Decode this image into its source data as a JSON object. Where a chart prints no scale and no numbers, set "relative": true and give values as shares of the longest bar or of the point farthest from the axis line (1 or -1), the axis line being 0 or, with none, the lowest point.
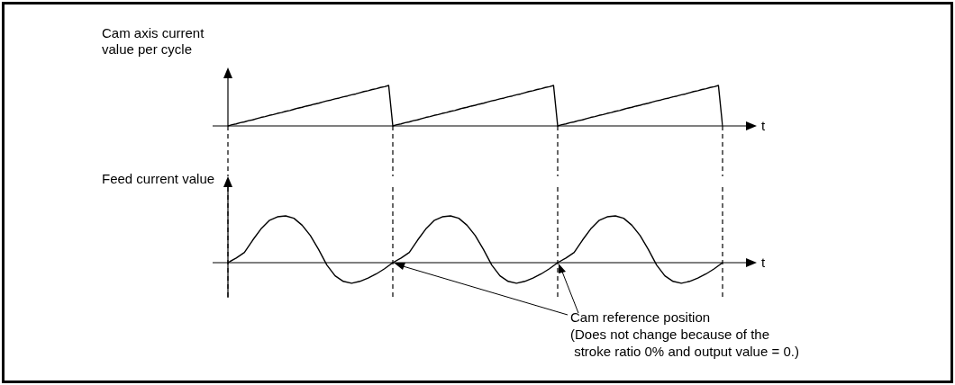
{
  "chart_data": [
    {
      "type": "line",
      "ylabel": "Cam axis current value per cycle",
      "xlabel": "t",
      "relative": true,
      "tick_labels": false,
      "grid": "x",
      "categories": [
        null,
        null,
        null,
        null,
        null,
        null,
        null,
        null,
        null,
        null,
        null,
        null,
        null,
        null,
        null,
        null,
        null,
        null,
        null,
        null,
        null,
        null,
        null,
        null,
        null,
        null,
        null,
        null,
        null,
        null,
        null,
        null,
        null,
        null,
        null,
        null,
        null,
        null,
        null,
        null,
        null,
        null,
        null,
        null,
        null,
        null,
        null,
        null,
        null,
        null,
        null,
        null,
        null,
        null,
        null,
        null,
        null,
        null,
        null,
        null,
        null,
        null,
        null,
        null,
        null,
        null,
        null,
        null,
        null,
        null,
        null,
        null,
        null,
        null,
        null,
        null,
        null,
        null,
        null,
        null,
        null,
        null,
        null,
        null,
        null,
        null,
        null,
        null,
        null,
        null,
        null,
        null,
        null,
        null,
        null,
        null,
        null,
        null,
        null,
        null,
        null,
        null,
        null,
        null,
        null,
        null,
        null,
        null,
        null,
        null,
        null,
        null,
        null,
        null,
        null,
        null,
        null,
        null,
        null,
        null,
        null
      ],
      "series": [
        {
          "color": "#000000",
          "values": [
            0,
            0.03,
            0.05,
            0.08,
            0.1,
            0.13,
            0.15,
            0.18,
            0.21,
            0.23,
            0.26,
            0.28,
            0.31,
            0.33,
            0.36,
            0.38,
            0.41,
            0.44,
            0.46,
            0.49,
            0.51,
            0.54,
            0.56,
            0.59,
            0.62,
            0.64,
            0.67,
            0.69,
            0.72,
            0.74,
            0.77,
            0.79,
            0.82,
            0.85,
            0.87,
            0.9,
            0.92,
            0.95,
            0.97,
            1,
            0,
            0.03,
            0.05,
            0.08,
            0.1,
            0.13,
            0.15,
            0.18,
            0.21,
            0.23,
            0.26,
            0.28,
            0.31,
            0.33,
            0.36,
            0.38,
            0.41,
            0.44,
            0.46,
            0.49,
            0.51,
            0.54,
            0.56,
            0.59,
            0.62,
            0.64,
            0.67,
            0.69,
            0.72,
            0.74,
            0.77,
            0.79,
            0.82,
            0.85,
            0.87,
            0.9,
            0.92,
            0.95,
            0.97,
            1,
            0,
            0.03,
            0.05,
            0.08,
            0.1,
            0.13,
            0.15,
            0.18,
            0.21,
            0.23,
            0.26,
            0.28,
            0.31,
            0.33,
            0.36,
            0.38,
            0.41,
            0.44,
            0.46,
            0.49,
            0.51,
            0.54,
            0.56,
            0.59,
            0.62,
            0.64,
            0.67,
            0.69,
            0.72,
            0.74,
            0.77,
            0.79,
            0.82,
            0.85,
            0.87,
            0.9,
            0.92,
            0.95,
            0.97,
            1,
            0
          ]
        }
      ]
    },
    {
      "type": "line",
      "ylabel": "Feed current value",
      "xlabel": "t",
      "relative": true,
      "tick_labels": false,
      "grid": "x",
      "categories": [
        null,
        null,
        null,
        null,
        null,
        null,
        null,
        null,
        null,
        null,
        null,
        null,
        null,
        null,
        null,
        null,
        null,
        null,
        null,
        null,
        null,
        null,
        null,
        null,
        null,
        null,
        null,
        null,
        null,
        null,
        null,
        null,
        null,
        null,
        null,
        null,
        null,
        null,
        null,
        null,
        null,
        null,
        null,
        null,
        null,
        null,
        null,
        null,
        null,
        null,
        null,
        null,
        null,
        null,
        null,
        null,
        null,
        null,
        null,
        null,
        null
      ],
      "series": [
        {
          "color": "#000000",
          "values": [
            0,
            0.1,
            0.22,
            0.48,
            0.72,
            0.9,
            0.98,
            1,
            0.95,
            0.8,
            0.58,
            0.28,
            -0.05,
            -0.28,
            -0.4,
            -0.44,
            -0.4,
            -0.33,
            -0.24,
            -0.13,
            0,
            0.1,
            0.22,
            0.48,
            0.72,
            0.9,
            0.98,
            1,
            0.95,
            0.8,
            0.58,
            0.28,
            -0.05,
            -0.28,
            -0.4,
            -0.44,
            -0.4,
            -0.33,
            -0.24,
            -0.13,
            0,
            0.1,
            0.22,
            0.48,
            0.72,
            0.9,
            0.98,
            1,
            0.95,
            0.8,
            0.58,
            0.28,
            -0.05,
            -0.28,
            -0.4,
            -0.44,
            -0.4,
            -0.33,
            -0.24,
            -0.13,
            0
          ]
        }
      ],
      "annotations": [
        "Cam reference position\n(Does not change because of the\n stroke ratio 0% and output value = 0.)"
      ]
    }
  ]
}
